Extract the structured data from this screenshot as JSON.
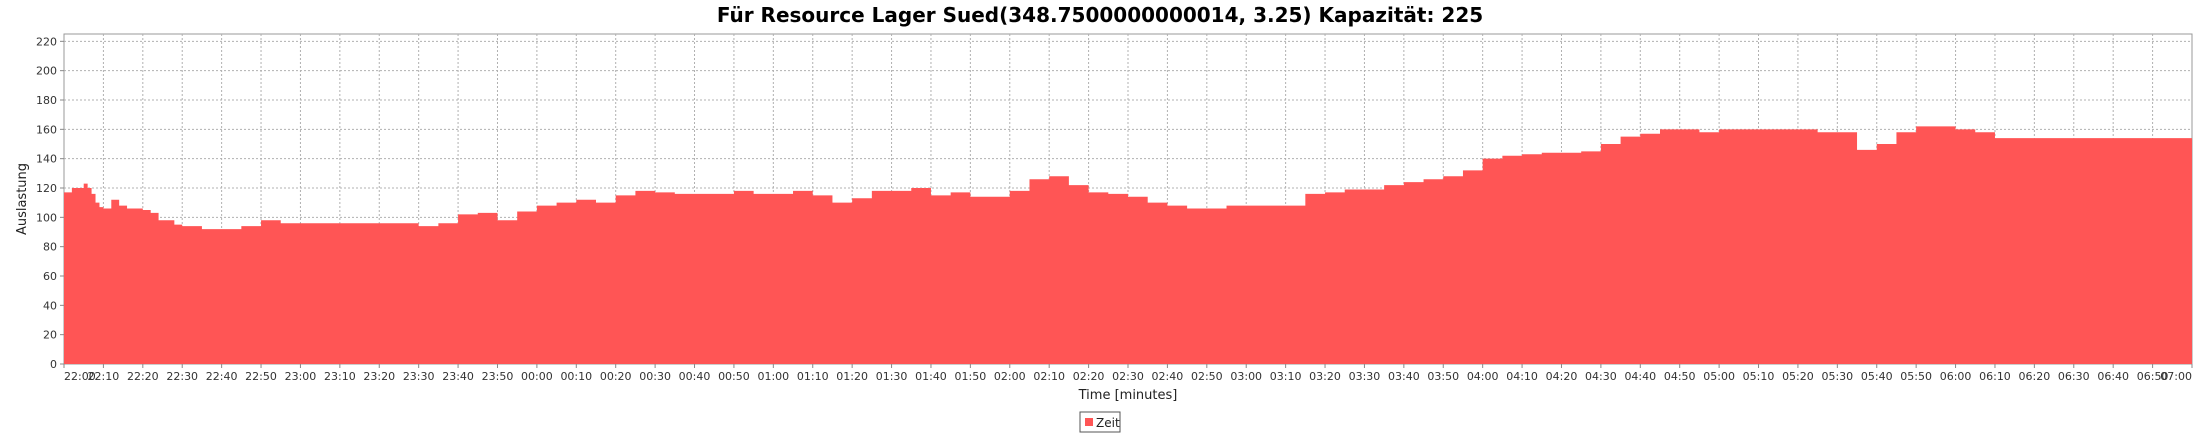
{
  "chart_data": {
    "type": "area",
    "title": "Für Resource Lager Sued(348.7500000000014, 3.25) Kapazität: 225",
    "xlabel": "Time [minutes]",
    "ylabel": "Auslastung",
    "xlim": [
      0,
      540
    ],
    "ylim": [
      0,
      225
    ],
    "y_ticks": [
      0,
      20,
      40,
      60,
      80,
      100,
      120,
      140,
      160,
      180,
      200,
      220
    ],
    "x_tick_labels": [
      "22:00",
      "22:10",
      "22:20",
      "22:30",
      "22:40",
      "22:50",
      "23:00",
      "23:10",
      "23:20",
      "23:30",
      "23:40",
      "23:50",
      "00:00",
      "00:10",
      "00:20",
      "00:30",
      "00:40",
      "00:50",
      "01:00",
      "01:10",
      "01:20",
      "01:30",
      "01:40",
      "01:50",
      "02:00",
      "02:10",
      "02:20",
      "02:30",
      "02:40",
      "02:50",
      "03:00",
      "03:10",
      "03:20",
      "03:30",
      "03:40",
      "03:50",
      "04:00",
      "04:10",
      "04:20",
      "04:30",
      "04:40",
      "04:50",
      "05:00",
      "05:10",
      "05:20",
      "05:30",
      "05:40",
      "05:50",
      "06:00",
      "06:10",
      "06:20",
      "06:30",
      "06:40",
      "06:50",
      "07:00"
    ],
    "grid": true,
    "legend": {
      "position": "bottom-center",
      "entries": [
        "Zeit"
      ]
    },
    "colors": {
      "series": "#ff5555",
      "grid": "#b0b0b0",
      "axis": "#888888"
    },
    "series": [
      {
        "name": "Zeit",
        "x": [
          0,
          2,
          5,
          6,
          7,
          8,
          9,
          10,
          12,
          14,
          16,
          18,
          20,
          22,
          24,
          28,
          30,
          32,
          35,
          40,
          45,
          50,
          55,
          60,
          65,
          70,
          75,
          80,
          85,
          90,
          95,
          100,
          105,
          110,
          115,
          120,
          125,
          130,
          135,
          140,
          145,
          150,
          155,
          160,
          165,
          170,
          175,
          180,
          185,
          190,
          195,
          200,
          205,
          210,
          215,
          220,
          225,
          230,
          235,
          240,
          245,
          250,
          255,
          260,
          265,
          270,
          275,
          280,
          285,
          290,
          295,
          300,
          305,
          310,
          315,
          320,
          325,
          330,
          335,
          340,
          345,
          350,
          355,
          360,
          365,
          370,
          375,
          380,
          385,
          390,
          395,
          400,
          405,
          410,
          415,
          420,
          425,
          430,
          435,
          440,
          445,
          450,
          455,
          460,
          465,
          470,
          475,
          480,
          485,
          490,
          495,
          500,
          505,
          510,
          515,
          520,
          525,
          530,
          535,
          540
        ],
        "values": [
          117,
          120,
          123,
          120,
          116,
          110,
          107,
          106,
          112,
          108,
          106,
          106,
          105,
          103,
          98,
          95,
          94,
          94,
          92,
          92,
          94,
          98,
          96,
          96,
          96,
          96,
          96,
          96,
          96,
          94,
          96,
          102,
          103,
          98,
          104,
          108,
          110,
          112,
          110,
          115,
          118,
          117,
          116,
          116,
          116,
          118,
          116,
          116,
          118,
          115,
          110,
          113,
          118,
          118,
          120,
          115,
          117,
          114,
          114,
          118,
          126,
          128,
          122,
          117,
          116,
          114,
          110,
          108,
          106,
          106,
          108,
          108,
          108,
          108,
          116,
          117,
          119,
          119,
          122,
          124,
          126,
          128,
          132,
          140,
          142,
          143,
          144,
          144,
          145,
          150,
          155,
          157,
          160,
          160,
          158,
          160,
          160,
          160,
          160,
          160,
          158,
          158,
          146,
          150,
          158,
          162,
          162,
          160,
          158,
          154,
          154,
          154,
          154,
          154,
          154,
          154,
          154,
          154,
          154,
          154
        ]
      }
    ]
  }
}
